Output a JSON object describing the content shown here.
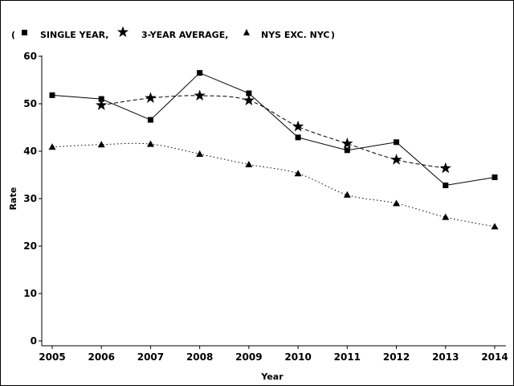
{
  "chart_data": {
    "type": "line",
    "title": "",
    "xlabel": "Year",
    "ylabel": "Rate",
    "x": [
      2005,
      2006,
      2007,
      2008,
      2009,
      2010,
      2011,
      2012,
      2013,
      2014
    ],
    "ylim": [
      0,
      60
    ],
    "yticks": [
      0,
      10,
      20,
      30,
      40,
      50,
      60
    ],
    "grid": false,
    "legend_position": "top-left",
    "legend": {
      "open": "(",
      "close": ")",
      "entries": [
        "SINGLE YEAR,",
        "3-YEAR AVERAGE,",
        "NYS EXC. NYC"
      ]
    },
    "series": [
      {
        "name": "SINGLE YEAR",
        "marker": "square",
        "line": "solid",
        "x": [
          2005,
          2006,
          2007,
          2008,
          2009,
          2010,
          2011,
          2012,
          2013,
          2014
        ],
        "values": [
          51.8,
          51.0,
          46.6,
          56.5,
          52.2,
          42.9,
          40.2,
          41.9,
          32.8,
          34.5
        ]
      },
      {
        "name": "3-YEAR AVERAGE",
        "marker": "star",
        "line": "dashed",
        "x": [
          2006,
          2007,
          2008,
          2009,
          2010,
          2011,
          2012,
          2013
        ],
        "values": [
          49.7,
          51.2,
          51.7,
          50.7,
          45.2,
          41.6,
          38.2,
          36.4
        ]
      },
      {
        "name": "NYS EXC. NYC",
        "marker": "triangle",
        "line": "dotted",
        "x": [
          2005,
          2006,
          2007,
          2008,
          2009,
          2010,
          2011,
          2012,
          2013,
          2014
        ],
        "values": [
          40.9,
          41.4,
          41.5,
          39.4,
          37.2,
          35.3,
          30.8,
          29.0,
          26.1,
          24.1
        ]
      }
    ],
    "colors": {
      "ink": "#000000",
      "background": "#ffffff"
    }
  }
}
